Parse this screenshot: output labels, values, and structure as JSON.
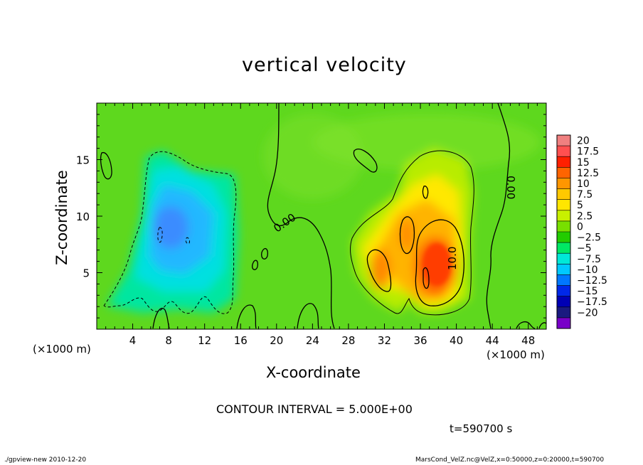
{
  "chart_data": {
    "type": "heatmap",
    "title": "vertical velocity",
    "xlabel": "X-coordinate",
    "ylabel": "Z-coordinate",
    "x_unit": "(×1000 m)",
    "z_unit": "(×1000 m)",
    "xlim": [
      0,
      50
    ],
    "ylim": [
      0,
      20
    ],
    "x_ticks": [
      4,
      8,
      12,
      16,
      20,
      24,
      28,
      32,
      36,
      40,
      44,
      48
    ],
    "y_ticks": [
      5,
      10,
      15
    ],
    "colorbar": {
      "levels": [
        20,
        17.5,
        15,
        12.5,
        10,
        7.5,
        5,
        2.5,
        0,
        -2.5,
        -5,
        -7.5,
        -10,
        -12.5,
        -15,
        -17.5,
        -20
      ],
      "level_labels": [
        "20",
        "17.5",
        "15",
        "12.5",
        "10",
        "7.5",
        "5",
        "2.5",
        "0",
        "−2.5",
        "−5",
        "−7.5",
        "−10",
        "−12.5",
        "−15",
        "−17.5",
        "−20"
      ],
      "colors": [
        "#f08080",
        "#ff5050",
        "#ff2000",
        "#ff6400",
        "#ff9600",
        "#ffc800",
        "#ffe600",
        "#c8f000",
        "#78e000",
        "#22cc00",
        "#00e864",
        "#00e8d8",
        "#00c8ff",
        "#0078ff",
        "#0028e8",
        "#0000b4",
        "#1a1a80",
        "#7800c8"
      ]
    },
    "contour_labels": [
      "0.00",
      "0.00",
      "10.0"
    ],
    "contour_interval": 5.0
  },
  "texts": {
    "contour_interval": "CONTOUR INTERVAL = 5.000E+00",
    "time": "t=590700 s",
    "footer_left": "./gpview-new  2010-12-20",
    "footer_right": "MarsCond_VelZ.nc@VelZ,x=0:50000,z=0:20000,t=590700"
  }
}
